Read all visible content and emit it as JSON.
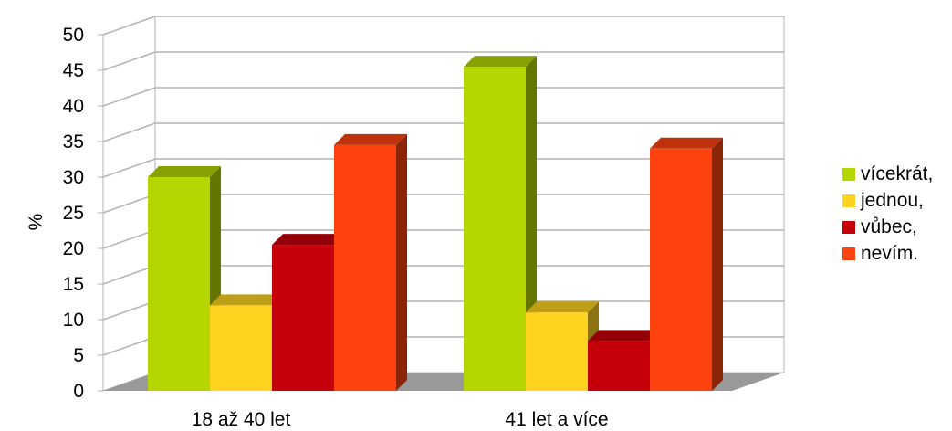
{
  "chart_data": {
    "type": "bar",
    "title": "",
    "xlabel": "",
    "ylabel": "%",
    "ylim": [
      0,
      50
    ],
    "yticks": [
      "0",
      "5",
      "10",
      "15",
      "20",
      "25",
      "30",
      "35",
      "40",
      "45",
      "50"
    ],
    "categories": [
      "18 až 40 let",
      "41 let a více"
    ],
    "series": [
      {
        "name": "vícekrát,",
        "color": "#b5d600",
        "values": [
          30,
          45.5
        ]
      },
      {
        "name": "jednou,",
        "color": "#ffd320",
        "values": [
          12,
          11
        ]
      },
      {
        "name": "vůbec,",
        "color": "#c5000b",
        "values": [
          20.5,
          7
        ]
      },
      {
        "name": "nevím.",
        "color": "#ff420e",
        "values": [
          34.5,
          34
        ]
      }
    ],
    "grid": true,
    "legend_position": "right",
    "style": "3d-clustered-column"
  }
}
